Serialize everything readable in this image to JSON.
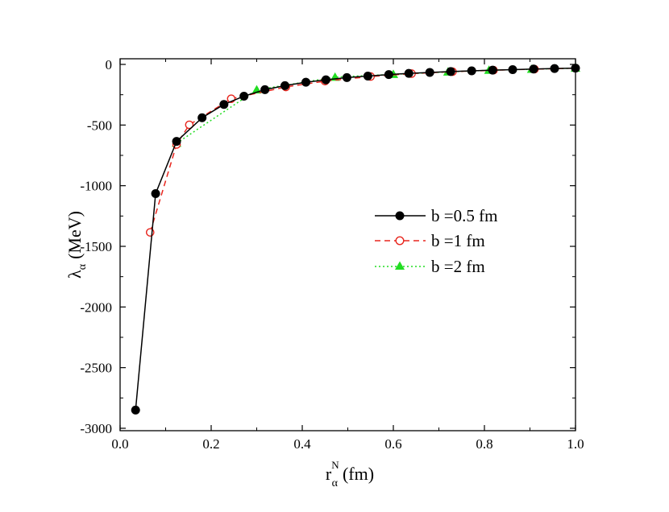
{
  "chart_data": {
    "type": "line",
    "title": "",
    "xlabel": {
      "main": "r",
      "sub": "α",
      "sup": "N",
      "unit": "(fm)"
    },
    "ylabel": {
      "main": "λ",
      "sub": "α",
      "unit": "(MeV)"
    },
    "xlim": [
      0.0,
      1.0
    ],
    "ylim": [
      -3000,
      50
    ],
    "xticks": [
      0.0,
      0.2,
      0.4,
      0.6,
      0.8,
      1.0
    ],
    "xtick_labels": [
      "0.0",
      "0.2",
      "0.4",
      "0.6",
      "0.8",
      "1.0"
    ],
    "yticks": [
      0,
      -500,
      -1000,
      -1500,
      -2000,
      -2500,
      -3000
    ],
    "ytick_labels": [
      "0",
      "-500",
      "-1000",
      "-1500",
      "-2000",
      "-2500",
      "-3000"
    ],
    "grid": false,
    "legend_position": "center-right",
    "series": [
      {
        "name": "b =0.5 fm",
        "color": "#000000",
        "dash": "solid",
        "marker": "filled-circle",
        "points": [
          [
            0.034,
            -2850
          ],
          [
            0.078,
            -1065
          ],
          [
            0.124,
            -635
          ],
          [
            0.18,
            -440
          ],
          [
            0.228,
            -330
          ],
          [
            0.272,
            -262
          ],
          [
            0.318,
            -208
          ],
          [
            0.362,
            -175
          ],
          [
            0.408,
            -147
          ],
          [
            0.452,
            -127
          ],
          [
            0.498,
            -109
          ],
          [
            0.544,
            -96
          ],
          [
            0.59,
            -84
          ],
          [
            0.634,
            -74
          ],
          [
            0.68,
            -66
          ],
          [
            0.726,
            -59
          ],
          [
            0.772,
            -53
          ],
          [
            0.818,
            -47
          ],
          [
            0.862,
            -43
          ],
          [
            0.908,
            -38
          ],
          [
            0.954,
            -34
          ],
          [
            1.0,
            -31
          ]
        ]
      },
      {
        "name": "b =1 fm",
        "color": "#e8261e",
        "dash": "dashed",
        "marker": "open-circle",
        "points": [
          [
            0.066,
            -1385
          ],
          [
            0.124,
            -660
          ],
          [
            0.152,
            -498
          ],
          [
            0.244,
            -283
          ],
          [
            0.364,
            -186
          ],
          [
            0.45,
            -138
          ],
          [
            0.55,
            -100
          ],
          [
            0.64,
            -76
          ],
          [
            0.73,
            -60
          ],
          [
            0.82,
            -48
          ],
          [
            0.91,
            -39
          ],
          [
            1.0,
            -31
          ]
        ]
      },
      {
        "name": "b =2 fm",
        "color": "#22dd22",
        "dash": "dotted",
        "marker": "filled-triangle",
        "points": [
          [
            0.124,
            -650
          ],
          [
            0.3,
            -210
          ],
          [
            0.472,
            -105
          ],
          [
            0.6,
            -82
          ],
          [
            0.72,
            -62
          ],
          [
            0.81,
            -48
          ],
          [
            0.904,
            -40
          ],
          [
            1.0,
            -31
          ]
        ]
      }
    ]
  }
}
